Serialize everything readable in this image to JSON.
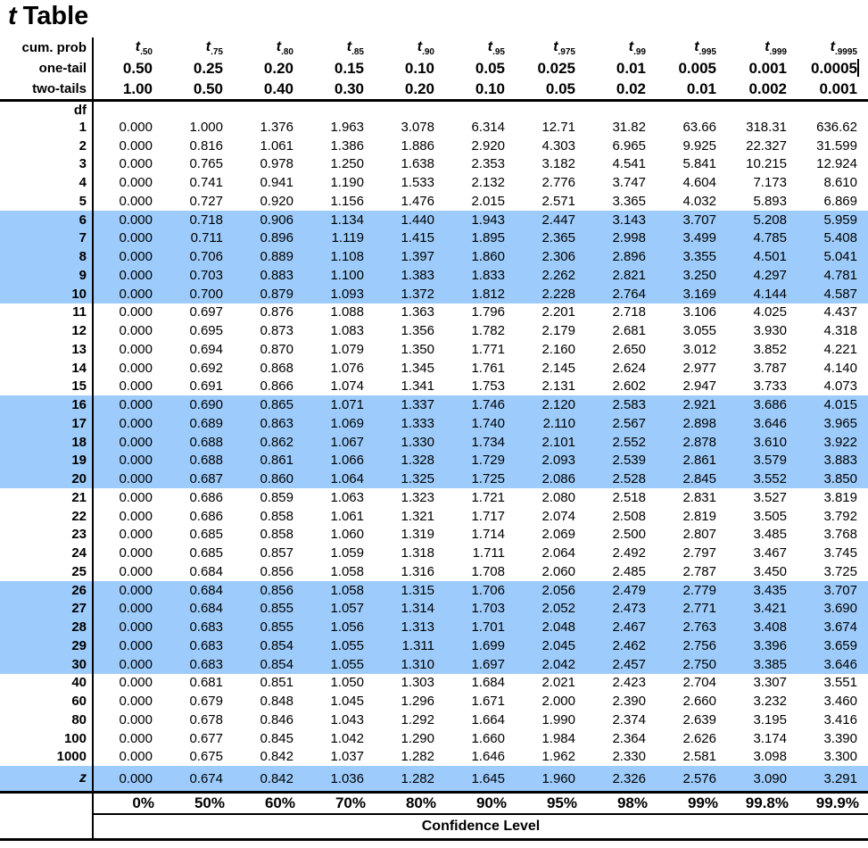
{
  "title": {
    "italic_part": "t",
    "rest": "Table"
  },
  "t_symbol": "t",
  "colors": {
    "highlight": "#9dccfc",
    "line": "#000000",
    "text": "#000000",
    "background": "#ffffff"
  },
  "header": {
    "cum_prob": "cum. prob",
    "one_tail": "one-tail",
    "two_tails": "two-tails",
    "df": "df",
    "confidence": "Confidence Level"
  },
  "columns": [
    {
      "t_sub": ".50",
      "one_tail": "0.50",
      "two_tails": "1.00",
      "percent": "0%"
    },
    {
      "t_sub": ".75",
      "one_tail": "0.25",
      "two_tails": "0.50",
      "percent": "50%"
    },
    {
      "t_sub": ".80",
      "one_tail": "0.20",
      "two_tails": "0.40",
      "percent": "60%"
    },
    {
      "t_sub": ".85",
      "one_tail": "0.15",
      "two_tails": "0.30",
      "percent": "70%"
    },
    {
      "t_sub": ".90",
      "one_tail": "0.10",
      "two_tails": "0.20",
      "percent": "80%"
    },
    {
      "t_sub": ".95",
      "one_tail": "0.05",
      "two_tails": "0.10",
      "percent": "90%"
    },
    {
      "t_sub": ".975",
      "one_tail": "0.025",
      "two_tails": "0.05",
      "percent": "95%"
    },
    {
      "t_sub": ".99",
      "one_tail": "0.01",
      "two_tails": "0.02",
      "percent": "98%"
    },
    {
      "t_sub": ".995",
      "one_tail": "0.005",
      "two_tails": "0.01",
      "percent": "99%"
    },
    {
      "t_sub": ".999",
      "one_tail": "0.001",
      "two_tails": "0.002",
      "percent": "99.8%"
    },
    {
      "t_sub": ".9995",
      "one_tail": "0.0005",
      "two_tails": "0.001",
      "percent": "99.9%"
    }
  ],
  "rows": [
    {
      "label": "1",
      "highlight": false,
      "z": false,
      "values": [
        "0.000",
        "1.000",
        "1.376",
        "1.963",
        "3.078",
        "6.314",
        "12.71",
        "31.82",
        "63.66",
        "318.31",
        "636.62"
      ]
    },
    {
      "label": "2",
      "highlight": false,
      "z": false,
      "values": [
        "0.000",
        "0.816",
        "1.061",
        "1.386",
        "1.886",
        "2.920",
        "4.303",
        "6.965",
        "9.925",
        "22.327",
        "31.599"
      ]
    },
    {
      "label": "3",
      "highlight": false,
      "z": false,
      "values": [
        "0.000",
        "0.765",
        "0.978",
        "1.250",
        "1.638",
        "2.353",
        "3.182",
        "4.541",
        "5.841",
        "10.215",
        "12.924"
      ]
    },
    {
      "label": "4",
      "highlight": false,
      "z": false,
      "values": [
        "0.000",
        "0.741",
        "0.941",
        "1.190",
        "1.533",
        "2.132",
        "2.776",
        "3.747",
        "4.604",
        "7.173",
        "8.610"
      ]
    },
    {
      "label": "5",
      "highlight": false,
      "z": false,
      "values": [
        "0.000",
        "0.727",
        "0.920",
        "1.156",
        "1.476",
        "2.015",
        "2.571",
        "3.365",
        "4.032",
        "5.893",
        "6.869"
      ]
    },
    {
      "label": "6",
      "highlight": true,
      "z": false,
      "values": [
        "0.000",
        "0.718",
        "0.906",
        "1.134",
        "1.440",
        "1.943",
        "2.447",
        "3.143",
        "3.707",
        "5.208",
        "5.959"
      ]
    },
    {
      "label": "7",
      "highlight": true,
      "z": false,
      "values": [
        "0.000",
        "0.711",
        "0.896",
        "1.119",
        "1.415",
        "1.895",
        "2.365",
        "2.998",
        "3.499",
        "4.785",
        "5.408"
      ]
    },
    {
      "label": "8",
      "highlight": true,
      "z": false,
      "values": [
        "0.000",
        "0.706",
        "0.889",
        "1.108",
        "1.397",
        "1.860",
        "2.306",
        "2.896",
        "3.355",
        "4.501",
        "5.041"
      ]
    },
    {
      "label": "9",
      "highlight": true,
      "z": false,
      "values": [
        "0.000",
        "0.703",
        "0.883",
        "1.100",
        "1.383",
        "1.833",
        "2.262",
        "2.821",
        "3.250",
        "4.297",
        "4.781"
      ]
    },
    {
      "label": "10",
      "highlight": true,
      "z": false,
      "values": [
        "0.000",
        "0.700",
        "0.879",
        "1.093",
        "1.372",
        "1.812",
        "2.228",
        "2.764",
        "3.169",
        "4.144",
        "4.587"
      ]
    },
    {
      "label": "11",
      "highlight": false,
      "z": false,
      "values": [
        "0.000",
        "0.697",
        "0.876",
        "1.088",
        "1.363",
        "1.796",
        "2.201",
        "2.718",
        "3.106",
        "4.025",
        "4.437"
      ]
    },
    {
      "label": "12",
      "highlight": false,
      "z": false,
      "values": [
        "0.000",
        "0.695",
        "0.873",
        "1.083",
        "1.356",
        "1.782",
        "2.179",
        "2.681",
        "3.055",
        "3.930",
        "4.318"
      ]
    },
    {
      "label": "13",
      "highlight": false,
      "z": false,
      "values": [
        "0.000",
        "0.694",
        "0.870",
        "1.079",
        "1.350",
        "1.771",
        "2.160",
        "2.650",
        "3.012",
        "3.852",
        "4.221"
      ]
    },
    {
      "label": "14",
      "highlight": false,
      "z": false,
      "values": [
        "0.000",
        "0.692",
        "0.868",
        "1.076",
        "1.345",
        "1.761",
        "2.145",
        "2.624",
        "2.977",
        "3.787",
        "4.140"
      ]
    },
    {
      "label": "15",
      "highlight": false,
      "z": false,
      "values": [
        "0.000",
        "0.691",
        "0.866",
        "1.074",
        "1.341",
        "1.753",
        "2.131",
        "2.602",
        "2.947",
        "3.733",
        "4.073"
      ]
    },
    {
      "label": "16",
      "highlight": true,
      "z": false,
      "values": [
        "0.000",
        "0.690",
        "0.865",
        "1.071",
        "1.337",
        "1.746",
        "2.120",
        "2.583",
        "2.921",
        "3.686",
        "4.015"
      ]
    },
    {
      "label": "17",
      "highlight": true,
      "z": false,
      "values": [
        "0.000",
        "0.689",
        "0.863",
        "1.069",
        "1.333",
        "1.740",
        "2.110",
        "2.567",
        "2.898",
        "3.646",
        "3.965"
      ]
    },
    {
      "label": "18",
      "highlight": true,
      "z": false,
      "values": [
        "0.000",
        "0.688",
        "0.862",
        "1.067",
        "1.330",
        "1.734",
        "2.101",
        "2.552",
        "2.878",
        "3.610",
        "3.922"
      ]
    },
    {
      "label": "19",
      "highlight": true,
      "z": false,
      "values": [
        "0.000",
        "0.688",
        "0.861",
        "1.066",
        "1.328",
        "1.729",
        "2.093",
        "2.539",
        "2.861",
        "3.579",
        "3.883"
      ]
    },
    {
      "label": "20",
      "highlight": true,
      "z": false,
      "values": [
        "0.000",
        "0.687",
        "0.860",
        "1.064",
        "1.325",
        "1.725",
        "2.086",
        "2.528",
        "2.845",
        "3.552",
        "3.850"
      ]
    },
    {
      "label": "21",
      "highlight": false,
      "z": false,
      "values": [
        "0.000",
        "0.686",
        "0.859",
        "1.063",
        "1.323",
        "1.721",
        "2.080",
        "2.518",
        "2.831",
        "3.527",
        "3.819"
      ]
    },
    {
      "label": "22",
      "highlight": false,
      "z": false,
      "values": [
        "0.000",
        "0.686",
        "0.858",
        "1.061",
        "1.321",
        "1.717",
        "2.074",
        "2.508",
        "2.819",
        "3.505",
        "3.792"
      ]
    },
    {
      "label": "23",
      "highlight": false,
      "z": false,
      "values": [
        "0.000",
        "0.685",
        "0.858",
        "1.060",
        "1.319",
        "1.714",
        "2.069",
        "2.500",
        "2.807",
        "3.485",
        "3.768"
      ]
    },
    {
      "label": "24",
      "highlight": false,
      "z": false,
      "values": [
        "0.000",
        "0.685",
        "0.857",
        "1.059",
        "1.318",
        "1.711",
        "2.064",
        "2.492",
        "2.797",
        "3.467",
        "3.745"
      ]
    },
    {
      "label": "25",
      "highlight": false,
      "z": false,
      "values": [
        "0.000",
        "0.684",
        "0.856",
        "1.058",
        "1.316",
        "1.708",
        "2.060",
        "2.485",
        "2.787",
        "3.450",
        "3.725"
      ]
    },
    {
      "label": "26",
      "highlight": true,
      "z": false,
      "values": [
        "0.000",
        "0.684",
        "0.856",
        "1.058",
        "1.315",
        "1.706",
        "2.056",
        "2.479",
        "2.779",
        "3.435",
        "3.707"
      ]
    },
    {
      "label": "27",
      "highlight": true,
      "z": false,
      "values": [
        "0.000",
        "0.684",
        "0.855",
        "1.057",
        "1.314",
        "1.703",
        "2.052",
        "2.473",
        "2.771",
        "3.421",
        "3.690"
      ]
    },
    {
      "label": "28",
      "highlight": true,
      "z": false,
      "values": [
        "0.000",
        "0.683",
        "0.855",
        "1.056",
        "1.313",
        "1.701",
        "2.048",
        "2.467",
        "2.763",
        "3.408",
        "3.674"
      ]
    },
    {
      "label": "29",
      "highlight": true,
      "z": false,
      "values": [
        "0.000",
        "0.683",
        "0.854",
        "1.055",
        "1.311",
        "1.699",
        "2.045",
        "2.462",
        "2.756",
        "3.396",
        "3.659"
      ]
    },
    {
      "label": "30",
      "highlight": true,
      "z": false,
      "values": [
        "0.000",
        "0.683",
        "0.854",
        "1.055",
        "1.310",
        "1.697",
        "2.042",
        "2.457",
        "2.750",
        "3.385",
        "3.646"
      ]
    },
    {
      "label": "40",
      "highlight": false,
      "z": false,
      "values": [
        "0.000",
        "0.681",
        "0.851",
        "1.050",
        "1.303",
        "1.684",
        "2.021",
        "2.423",
        "2.704",
        "3.307",
        "3.551"
      ]
    },
    {
      "label": "60",
      "highlight": false,
      "z": false,
      "values": [
        "0.000",
        "0.679",
        "0.848",
        "1.045",
        "1.296",
        "1.671",
        "2.000",
        "2.390",
        "2.660",
        "3.232",
        "3.460"
      ]
    },
    {
      "label": "80",
      "highlight": false,
      "z": false,
      "values": [
        "0.000",
        "0.678",
        "0.846",
        "1.043",
        "1.292",
        "1.664",
        "1.990",
        "2.374",
        "2.639",
        "3.195",
        "3.416"
      ]
    },
    {
      "label": "100",
      "highlight": false,
      "z": false,
      "values": [
        "0.000",
        "0.677",
        "0.845",
        "1.042",
        "1.290",
        "1.660",
        "1.984",
        "2.364",
        "2.626",
        "3.174",
        "3.390"
      ]
    },
    {
      "label": "1000",
      "highlight": false,
      "z": false,
      "values": [
        "0.000",
        "0.675",
        "0.842",
        "1.037",
        "1.282",
        "1.646",
        "1.962",
        "2.330",
        "2.581",
        "3.098",
        "3.300"
      ]
    },
    {
      "label": "z",
      "highlight": true,
      "z": true,
      "values": [
        "0.000",
        "0.674",
        "0.842",
        "1.036",
        "1.282",
        "1.645",
        "1.960",
        "2.326",
        "2.576",
        "3.090",
        "3.291"
      ]
    }
  ]
}
